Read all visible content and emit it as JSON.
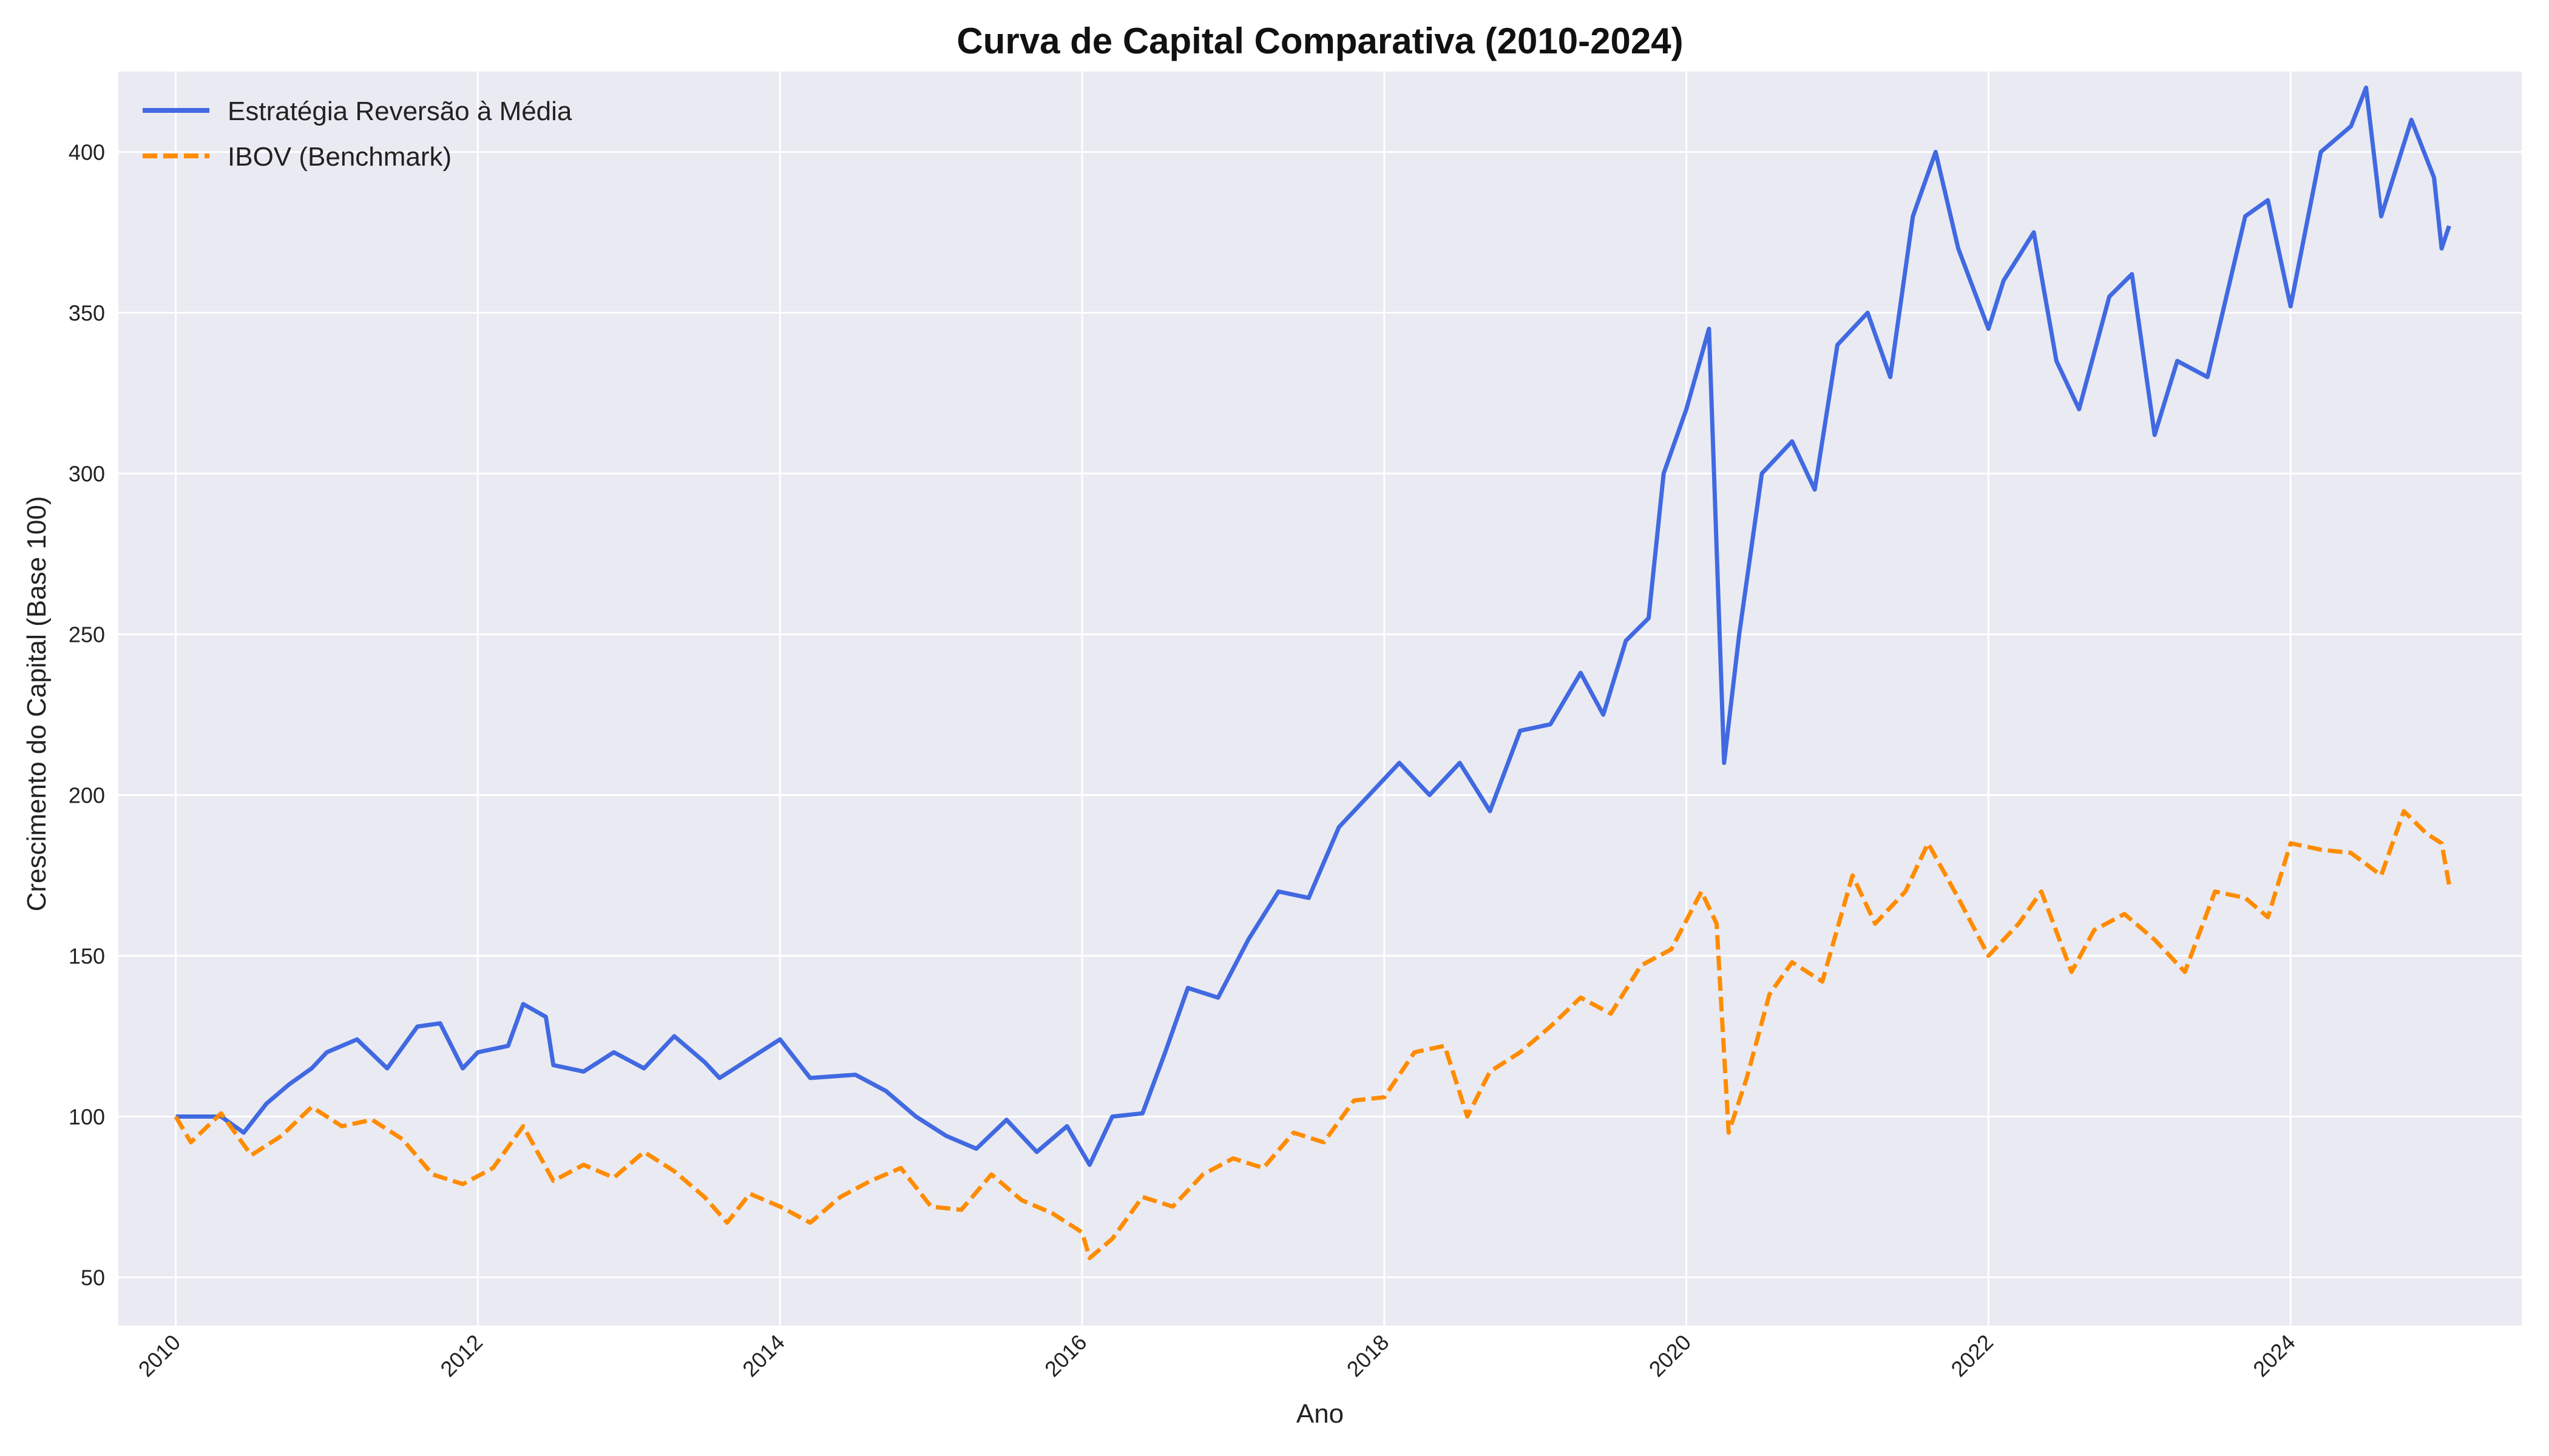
{
  "chart_data": {
    "type": "line",
    "title": "Curva de Capital Comparativa (2010-2024)",
    "xlabel": "Ano",
    "ylabel": "Crescimento do Capital (Base 100)",
    "xlim": [
      2009.62,
      2025.53
    ],
    "ylim": [
      35,
      425
    ],
    "x_ticks": [
      2010,
      2012,
      2014,
      2016,
      2018,
      2020,
      2022,
      2024
    ],
    "x_tick_labels": [
      "2010",
      "2012",
      "2014",
      "2016",
      "2018",
      "2020",
      "2022",
      "2024"
    ],
    "y_ticks": [
      50,
      100,
      150,
      200,
      250,
      300,
      350,
      400
    ],
    "y_tick_labels": [
      "50",
      "100",
      "150",
      "200",
      "250",
      "300",
      "350",
      "400"
    ],
    "grid": true,
    "legend_position": "top-left",
    "background": "#eaeaf2",
    "series": [
      {
        "name": "Estratégia Reversão à Média",
        "color": "#4169e1",
        "style": "solid",
        "points": [
          [
            2010.0,
            100
          ],
          [
            2010.3,
            100
          ],
          [
            2010.45,
            95
          ],
          [
            2010.6,
            104
          ],
          [
            2010.75,
            110
          ],
          [
            2010.9,
            115
          ],
          [
            2011.0,
            120
          ],
          [
            2011.2,
            124
          ],
          [
            2011.4,
            115
          ],
          [
            2011.6,
            128
          ],
          [
            2011.75,
            129
          ],
          [
            2011.9,
            115
          ],
          [
            2012.0,
            120
          ],
          [
            2012.2,
            122
          ],
          [
            2012.3,
            135
          ],
          [
            2012.45,
            131
          ],
          [
            2012.5,
            116
          ],
          [
            2012.7,
            114
          ],
          [
            2012.9,
            120
          ],
          [
            2013.1,
            115
          ],
          [
            2013.3,
            125
          ],
          [
            2013.5,
            117
          ],
          [
            2013.6,
            112
          ],
          [
            2013.8,
            118
          ],
          [
            2014.0,
            124
          ],
          [
            2014.1,
            118
          ],
          [
            2014.2,
            112
          ],
          [
            2014.5,
            113
          ],
          [
            2014.7,
            108
          ],
          [
            2014.9,
            100
          ],
          [
            2015.1,
            94
          ],
          [
            2015.3,
            90
          ],
          [
            2015.5,
            99
          ],
          [
            2015.7,
            89
          ],
          [
            2015.9,
            97
          ],
          [
            2016.05,
            85
          ],
          [
            2016.2,
            100
          ],
          [
            2016.4,
            101
          ],
          [
            2016.55,
            120
          ],
          [
            2016.7,
            140
          ],
          [
            2016.9,
            137
          ],
          [
            2017.1,
            155
          ],
          [
            2017.3,
            170
          ],
          [
            2017.5,
            168
          ],
          [
            2017.7,
            190
          ],
          [
            2017.9,
            200
          ],
          [
            2018.1,
            210
          ],
          [
            2018.3,
            200
          ],
          [
            2018.5,
            210
          ],
          [
            2018.7,
            195
          ],
          [
            2018.9,
            220
          ],
          [
            2019.1,
            222
          ],
          [
            2019.3,
            238
          ],
          [
            2019.45,
            225
          ],
          [
            2019.6,
            248
          ],
          [
            2019.75,
            255
          ],
          [
            2019.85,
            300
          ],
          [
            2020.0,
            320
          ],
          [
            2020.15,
            345
          ],
          [
            2020.25,
            210
          ],
          [
            2020.35,
            250
          ],
          [
            2020.5,
            300
          ],
          [
            2020.7,
            310
          ],
          [
            2020.85,
            295
          ],
          [
            2021.0,
            340
          ],
          [
            2021.2,
            350
          ],
          [
            2021.35,
            330
          ],
          [
            2021.5,
            380
          ],
          [
            2021.65,
            400
          ],
          [
            2021.8,
            370
          ],
          [
            2022.0,
            345
          ],
          [
            2022.1,
            360
          ],
          [
            2022.3,
            375
          ],
          [
            2022.45,
            335
          ],
          [
            2022.6,
            320
          ],
          [
            2022.8,
            355
          ],
          [
            2022.95,
            362
          ],
          [
            2023.1,
            312
          ],
          [
            2023.25,
            335
          ],
          [
            2023.45,
            330
          ],
          [
            2023.7,
            380
          ],
          [
            2023.85,
            385
          ],
          [
            2024.0,
            352
          ],
          [
            2024.2,
            400
          ],
          [
            2024.4,
            408
          ],
          [
            2024.5,
            420
          ],
          [
            2024.6,
            380
          ],
          [
            2024.8,
            410
          ],
          [
            2024.95,
            392
          ],
          [
            2025.0,
            370
          ],
          [
            2025.05,
            377
          ]
        ]
      },
      {
        "name": "IBOV (Benchmark)",
        "color": "#ff8c00",
        "style": "dashed",
        "points": [
          [
            2010.0,
            100
          ],
          [
            2010.1,
            92
          ],
          [
            2010.3,
            101
          ],
          [
            2010.5,
            88
          ],
          [
            2010.7,
            94
          ],
          [
            2010.9,
            103
          ],
          [
            2011.1,
            97
          ],
          [
            2011.3,
            99
          ],
          [
            2011.5,
            93
          ],
          [
            2011.7,
            82
          ],
          [
            2011.9,
            79
          ],
          [
            2012.1,
            84
          ],
          [
            2012.3,
            97
          ],
          [
            2012.5,
            80
          ],
          [
            2012.7,
            85
          ],
          [
            2012.9,
            81
          ],
          [
            2013.1,
            89
          ],
          [
            2013.3,
            83
          ],
          [
            2013.5,
            75
          ],
          [
            2013.65,
            67
          ],
          [
            2013.8,
            76
          ],
          [
            2014.0,
            72
          ],
          [
            2014.2,
            67
          ],
          [
            2014.4,
            75
          ],
          [
            2014.6,
            80
          ],
          [
            2014.8,
            84
          ],
          [
            2015.0,
            72
          ],
          [
            2015.2,
            71
          ],
          [
            2015.4,
            82
          ],
          [
            2015.6,
            74
          ],
          [
            2015.8,
            70
          ],
          [
            2016.0,
            64
          ],
          [
            2016.05,
            56
          ],
          [
            2016.2,
            62
          ],
          [
            2016.4,
            75
          ],
          [
            2016.6,
            72
          ],
          [
            2016.8,
            82
          ],
          [
            2017.0,
            87
          ],
          [
            2017.2,
            84
          ],
          [
            2017.4,
            95
          ],
          [
            2017.6,
            92
          ],
          [
            2017.8,
            105
          ],
          [
            2018.0,
            106
          ],
          [
            2018.2,
            120
          ],
          [
            2018.4,
            122
          ],
          [
            2018.55,
            100
          ],
          [
            2018.7,
            114
          ],
          [
            2018.9,
            120
          ],
          [
            2019.1,
            128
          ],
          [
            2019.3,
            137
          ],
          [
            2019.5,
            132
          ],
          [
            2019.7,
            147
          ],
          [
            2019.9,
            152
          ],
          [
            2020.1,
            170
          ],
          [
            2020.2,
            160
          ],
          [
            2020.28,
            95
          ],
          [
            2020.4,
            112
          ],
          [
            2020.55,
            138
          ],
          [
            2020.7,
            148
          ],
          [
            2020.9,
            142
          ],
          [
            2021.1,
            175
          ],
          [
            2021.25,
            160
          ],
          [
            2021.45,
            170
          ],
          [
            2021.6,
            185
          ],
          [
            2021.8,
            168
          ],
          [
            2022.0,
            150
          ],
          [
            2022.2,
            160
          ],
          [
            2022.35,
            170
          ],
          [
            2022.55,
            145
          ],
          [
            2022.7,
            158
          ],
          [
            2022.9,
            163
          ],
          [
            2023.1,
            155
          ],
          [
            2023.3,
            145
          ],
          [
            2023.5,
            170
          ],
          [
            2023.7,
            168
          ],
          [
            2023.85,
            162
          ],
          [
            2024.0,
            185
          ],
          [
            2024.2,
            183
          ],
          [
            2024.4,
            182
          ],
          [
            2024.6,
            175
          ],
          [
            2024.75,
            195
          ],
          [
            2024.9,
            188
          ],
          [
            2025.0,
            185
          ],
          [
            2025.05,
            172
          ]
        ]
      }
    ]
  }
}
